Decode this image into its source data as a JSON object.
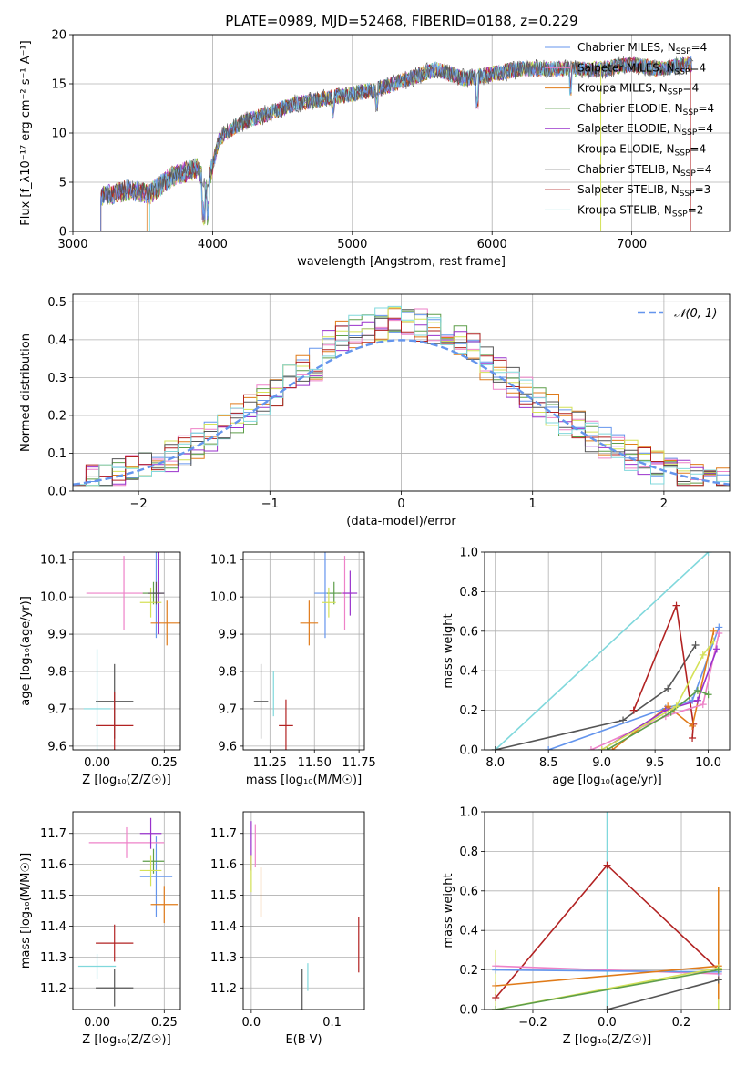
{
  "figure": {
    "title": "PLATE=0989, MJD=52468, FIBERID=0188, z=0.229"
  },
  "colors": {
    "blue": "#6495ed",
    "orange": "#ff7f0e",
    "darkorange": "#e07b1a",
    "green": "#5e9e4a",
    "purple": "#9932cc",
    "yellowgreen": "#d4e157",
    "gray": "#555555",
    "red": "#b22222",
    "cyan": "#80d8dc",
    "pink": "#ee82c8",
    "brown": "#8c564b"
  },
  "chart_data": [
    {
      "id": "spectrum",
      "type": "line",
      "xlabel": "wavelength [Angstrom, rest frame]",
      "ylabel": "Flux [f_λ10⁻¹⁷ erg cm⁻² s⁻¹ A⁻¹]",
      "xlim": [
        3000,
        7700
      ],
      "ylim": [
        0,
        20
      ],
      "xticks": [
        3000,
        4000,
        5000,
        6000,
        7000
      ],
      "yticks": [
        0,
        5,
        10,
        15,
        20
      ],
      "legend_position": "top-right",
      "legend": [
        {
          "label": "Chabrier MILES, N_SSP=4",
          "color": "#6495ed"
        },
        {
          "label": "Salpeter MILES, N_SSP=4",
          "color": "#ee82c8"
        },
        {
          "label": "Kroupa MILES, N_SSP=4",
          "color": "#e07b1a"
        },
        {
          "label": "Chabrier ELODIE, N_SSP=4",
          "color": "#5e9e4a"
        },
        {
          "label": "Salpeter ELODIE, N_SSP=4",
          "color": "#9932cc"
        },
        {
          "label": "Kroupa ELODIE, N_SSP=4",
          "color": "#d4e157"
        },
        {
          "label": "Chabrier STELIB, N_SSP=4",
          "color": "#555555"
        },
        {
          "label": "Salpeter STELIB, N_SSP=3",
          "color": "#b22222"
        },
        {
          "label": "Kroupa STELIB, N_SSP=2",
          "color": "#80d8dc"
        }
      ],
      "continuum": {
        "x": [
          3200,
          3400,
          3550,
          3700,
          3900,
          3950,
          4050,
          4200,
          4400,
          4600,
          4800,
          5000,
          5200,
          5400,
          5600,
          5800,
          6000,
          6200,
          6400,
          6600,
          6800,
          7000,
          7200,
          7400
        ],
        "y": [
          3.5,
          4.2,
          3.8,
          5.5,
          6.5,
          4.0,
          9.5,
          11.0,
          12.0,
          13.0,
          13.5,
          14.0,
          14.5,
          15.5,
          16.5,
          15.5,
          16.0,
          16.5,
          16.5,
          16.5,
          16.5,
          17.0,
          16.5,
          17.0
        ]
      }
    },
    {
      "id": "residuals",
      "type": "histogram",
      "xlabel": "(data-model)/error",
      "ylabel": "Normed distribution",
      "xlim": [
        -2.5,
        2.5
      ],
      "ylim": [
        0,
        0.52
      ],
      "xticks": [
        -2,
        -1,
        0,
        1,
        2
      ],
      "yticks": [
        0.0,
        0.1,
        0.2,
        0.3,
        0.4,
        0.5
      ],
      "legend_position": "top-right",
      "reference_curve": {
        "label": "𝒩(0, 1)",
        "mean": 0,
        "sigma": 1,
        "color": "#6495ed"
      },
      "bin_width": 0.1
    },
    {
      "id": "age-vs-Z",
      "type": "scatter",
      "xlabel": "Z [log₁₀(Z/Z☉)]",
      "ylabel": "age  [log₁₀(age/yr)]",
      "xlim": [
        -0.09,
        0.31
      ],
      "ylim": [
        9.59,
        10.12
      ],
      "xticks": [
        0.0,
        0.25
      ],
      "yticks": [
        9.6,
        9.7,
        9.8,
        9.9,
        10.0,
        10.1
      ],
      "points": [
        {
          "x": 0.22,
          "y": 10.01,
          "xerr": 0.0,
          "yerr": 0.12,
          "color": "#6495ed"
        },
        {
          "x": 0.1,
          "y": 10.01,
          "xerr": 0.14,
          "yerr": 0.1,
          "color": "#ee82c8"
        },
        {
          "x": 0.26,
          "y": 9.93,
          "xerr": 0.06,
          "yerr": 0.06,
          "color": "#e07b1a"
        },
        {
          "x": 0.21,
          "y": 10.01,
          "xerr": 0.04,
          "yerr": 0.03,
          "color": "#5e9e4a"
        },
        {
          "x": 0.23,
          "y": 10.01,
          "xerr": 0.02,
          "yerr": 0.11,
          "color": "#9932cc"
        },
        {
          "x": 0.2,
          "y": 9.985,
          "xerr": 0.04,
          "yerr": 0.04,
          "color": "#d4e157"
        },
        {
          "x": 0.22,
          "y": 10.01,
          "xerr": 0.03,
          "yerr": 0.03,
          "color": "#555555"
        },
        {
          "x": 0.065,
          "y": 9.72,
          "xerr": 0.07,
          "yerr": 0.1,
          "color": "#555555"
        },
        {
          "x": 0.065,
          "y": 9.655,
          "xerr": 0.07,
          "yerr": 0.09,
          "color": "#b22222"
        },
        {
          "x": 0.0,
          "y": 9.7,
          "xerr": 0.05,
          "yerr": 0.16,
          "color": "#80d8dc"
        }
      ]
    },
    {
      "id": "age-vs-mass",
      "type": "scatter",
      "xlabel": "mass [log₁₀(M/M☉)]",
      "ylabel": "",
      "xlim": [
        11.1,
        11.78
      ],
      "ylim": [
        9.59,
        10.12
      ],
      "xticks": [
        11.25,
        11.5,
        11.75
      ],
      "yticks": [
        9.6,
        9.7,
        9.8,
        9.9,
        10.0,
        10.1
      ],
      "points": [
        {
          "x": 11.56,
          "y": 10.01,
          "xerr": 0.06,
          "yerr": 0.12,
          "color": "#6495ed"
        },
        {
          "x": 11.67,
          "y": 10.01,
          "xerr": 0.04,
          "yerr": 0.1,
          "color": "#ee82c8"
        },
        {
          "x": 11.47,
          "y": 9.93,
          "xerr": 0.05,
          "yerr": 0.06,
          "color": "#e07b1a"
        },
        {
          "x": 11.61,
          "y": 10.01,
          "xerr": 0.04,
          "yerr": 0.03,
          "color": "#5e9e4a"
        },
        {
          "x": 11.7,
          "y": 10.01,
          "xerr": 0.04,
          "yerr": 0.06,
          "color": "#9932cc"
        },
        {
          "x": 11.58,
          "y": 9.985,
          "xerr": 0.04,
          "yerr": 0.04,
          "color": "#d4e157"
        },
        {
          "x": 11.2,
          "y": 9.72,
          "xerr": 0.04,
          "yerr": 0.1,
          "color": "#555555"
        },
        {
          "x": 11.34,
          "y": 9.655,
          "xerr": 0.04,
          "yerr": 0.07,
          "color": "#b22222"
        },
        {
          "x": 11.27,
          "y": 9.74,
          "xerr": 0.0,
          "yerr": 0.06,
          "color": "#80d8dc"
        }
      ]
    },
    {
      "id": "weight-vs-age",
      "type": "line",
      "xlabel": "age  [log₁₀(age/yr)]",
      "ylabel": "mass weight",
      "xlim": [
        7.9,
        10.2
      ],
      "ylim": [
        0,
        1.0
      ],
      "xticks": [
        8.0,
        8.5,
        9.0,
        9.5,
        10.0
      ],
      "yticks": [
        0.0,
        0.2,
        0.4,
        0.6,
        0.8,
        1.0
      ],
      "series": [
        {
          "color": "#80d8dc",
          "x": [
            8.0,
            10.0
          ],
          "y": [
            0.0,
            1.0
          ]
        },
        {
          "color": "#555555",
          "x": [
            8.0,
            9.2,
            9.62,
            9.88
          ],
          "y": [
            0.0,
            0.15,
            0.31,
            0.53
          ]
        },
        {
          "color": "#b22222",
          "x": [
            9.3,
            9.7,
            9.86,
            9.85
          ],
          "y": [
            0.2,
            0.73,
            0.13,
            0.06
          ]
        },
        {
          "color": "#6495ed",
          "x": [
            8.5,
            9.6,
            9.85,
            10.1
          ],
          "y": [
            0.0,
            0.21,
            0.25,
            0.62
          ]
        },
        {
          "color": "#e07b1a",
          "x": [
            9.1,
            9.62,
            9.85,
            10.05
          ],
          "y": [
            0.0,
            0.22,
            0.12,
            0.6
          ]
        },
        {
          "color": "#ee82c8",
          "x": [
            8.9,
            9.6,
            9.95,
            10.1
          ],
          "y": [
            0.0,
            0.17,
            0.23,
            0.59
          ]
        },
        {
          "color": "#9932cc",
          "x": [
            9.0,
            9.6,
            9.9,
            10.08
          ],
          "y": [
            0.0,
            0.2,
            0.25,
            0.51
          ]
        },
        {
          "color": "#5e9e4a",
          "x": [
            9.05,
            9.65,
            9.9,
            10.0
          ],
          "y": [
            0.0,
            0.19,
            0.3,
            0.28
          ]
        },
        {
          "color": "#d4e157",
          "x": [
            9.0,
            9.7,
            9.95,
            10.05
          ],
          "y": [
            0.0,
            0.22,
            0.48,
            0.55
          ]
        }
      ]
    },
    {
      "id": "mass-vs-Z",
      "type": "scatter",
      "xlabel": "Z [log₁₀(Z/Z☉)]",
      "ylabel": "mass [log₁₀(M/M☉)]",
      "xlim": [
        -0.09,
        0.31
      ],
      "ylim": [
        11.13,
        11.77
      ],
      "xticks": [
        0.0,
        0.25
      ],
      "yticks": [
        11.2,
        11.3,
        11.4,
        11.5,
        11.6,
        11.7
      ],
      "points": [
        {
          "x": 0.22,
          "y": 11.56,
          "xerr": 0.06,
          "yerr": 0.13,
          "color": "#6495ed"
        },
        {
          "x": 0.11,
          "y": 11.67,
          "xerr": 0.14,
          "yerr": 0.05,
          "color": "#ee82c8"
        },
        {
          "x": 0.25,
          "y": 11.47,
          "xerr": 0.05,
          "yerr": 0.06,
          "color": "#e07b1a"
        },
        {
          "x": 0.21,
          "y": 11.61,
          "xerr": 0.04,
          "yerr": 0.04,
          "color": "#5e9e4a"
        },
        {
          "x": 0.2,
          "y": 11.7,
          "xerr": 0.04,
          "yerr": 0.05,
          "color": "#9932cc"
        },
        {
          "x": 0.2,
          "y": 11.58,
          "xerr": 0.04,
          "yerr": 0.05,
          "color": "#d4e157"
        },
        {
          "x": 0.065,
          "y": 11.2,
          "xerr": 0.07,
          "yerr": 0.06,
          "color": "#555555"
        },
        {
          "x": 0.065,
          "y": 11.345,
          "xerr": 0.07,
          "yerr": 0.06,
          "color": "#b22222"
        },
        {
          "x": 0.0,
          "y": 11.27,
          "xerr": 0.07,
          "yerr": 0.04,
          "color": "#80d8dc"
        }
      ]
    },
    {
      "id": "mass-vs-EBV",
      "type": "scatter",
      "xlabel": "E(B-V)",
      "ylabel": "",
      "xlim": [
        -0.01,
        0.14
      ],
      "ylim": [
        11.13,
        11.77
      ],
      "xticks": [
        0.0,
        0.1
      ],
      "yticks": [
        11.2,
        11.3,
        11.4,
        11.5,
        11.6,
        11.7
      ],
      "points": [
        {
          "x": 0.0,
          "y": 11.66,
          "xerr": 0.0,
          "yerr": 0.08,
          "color": "#9932cc"
        },
        {
          "x": 0.005,
          "y": 11.66,
          "xerr": 0.0,
          "yerr": 0.07,
          "color": "#ee82c8"
        },
        {
          "x": 0.0,
          "y": 11.57,
          "xerr": 0.0,
          "yerr": 0.06,
          "color": "#d4e157"
        },
        {
          "x": 0.012,
          "y": 11.51,
          "xerr": 0.0,
          "yerr": 0.08,
          "color": "#e07b1a"
        },
        {
          "x": 0.063,
          "y": 11.18,
          "xerr": 0.0,
          "yerr": 0.08,
          "color": "#555555"
        },
        {
          "x": 0.07,
          "y": 11.235,
          "xerr": 0.0,
          "yerr": 0.045,
          "color": "#80d8dc"
        },
        {
          "x": 0.133,
          "y": 11.34,
          "xerr": 0.0,
          "yerr": 0.09,
          "color": "#b22222"
        }
      ]
    },
    {
      "id": "weight-vs-Z",
      "type": "line",
      "xlabel": "Z [log₁₀(Z/Z☉)]",
      "ylabel": "mass weight",
      "xlim": [
        -0.33,
        0.33
      ],
      "ylim": [
        0,
        1.0
      ],
      "xticks": [
        -0.2,
        0.0,
        0.2
      ],
      "yticks": [
        0.0,
        0.2,
        0.4,
        0.6,
        0.8,
        1.0
      ],
      "series": [
        {
          "color": "#b22222",
          "x": [
            -0.3,
            0.0,
            0.3
          ],
          "y": [
            0.06,
            0.73,
            0.2
          ]
        },
        {
          "color": "#ee82c8",
          "x": [
            -0.3,
            0.3
          ],
          "y": [
            0.22,
            0.18
          ]
        },
        {
          "color": "#6495ed",
          "x": [
            -0.3,
            0.3
          ],
          "y": [
            0.2,
            0.19
          ]
        },
        {
          "color": "#e07b1a",
          "x": [
            -0.3,
            0.3
          ],
          "y": [
            0.12,
            0.22
          ]
        },
        {
          "color": "#d4e157",
          "x": [
            -0.3,
            0.3
          ],
          "y": [
            0.0,
            0.21
          ]
        },
        {
          "color": "#5e9e4a",
          "x": [
            -0.3,
            0.3
          ],
          "y": [
            0.0,
            0.2
          ]
        },
        {
          "color": "#555555",
          "x": [
            0.0,
            0.3
          ],
          "y": [
            0.0,
            0.15
          ]
        }
      ],
      "vertical_marks": [
        {
          "x": 0.0,
          "y0": 0.0,
          "y1": 1.0,
          "color": "#80d8dc"
        },
        {
          "x": -0.3,
          "y0": 0.0,
          "y1": 0.3,
          "color": "#d4e157"
        },
        {
          "x": 0.3,
          "y0": 0.0,
          "y1": 0.62,
          "color": "#d4e157"
        },
        {
          "x": 0.3,
          "y0": 0.05,
          "y1": 0.62,
          "color": "#e07b1a"
        }
      ]
    }
  ]
}
